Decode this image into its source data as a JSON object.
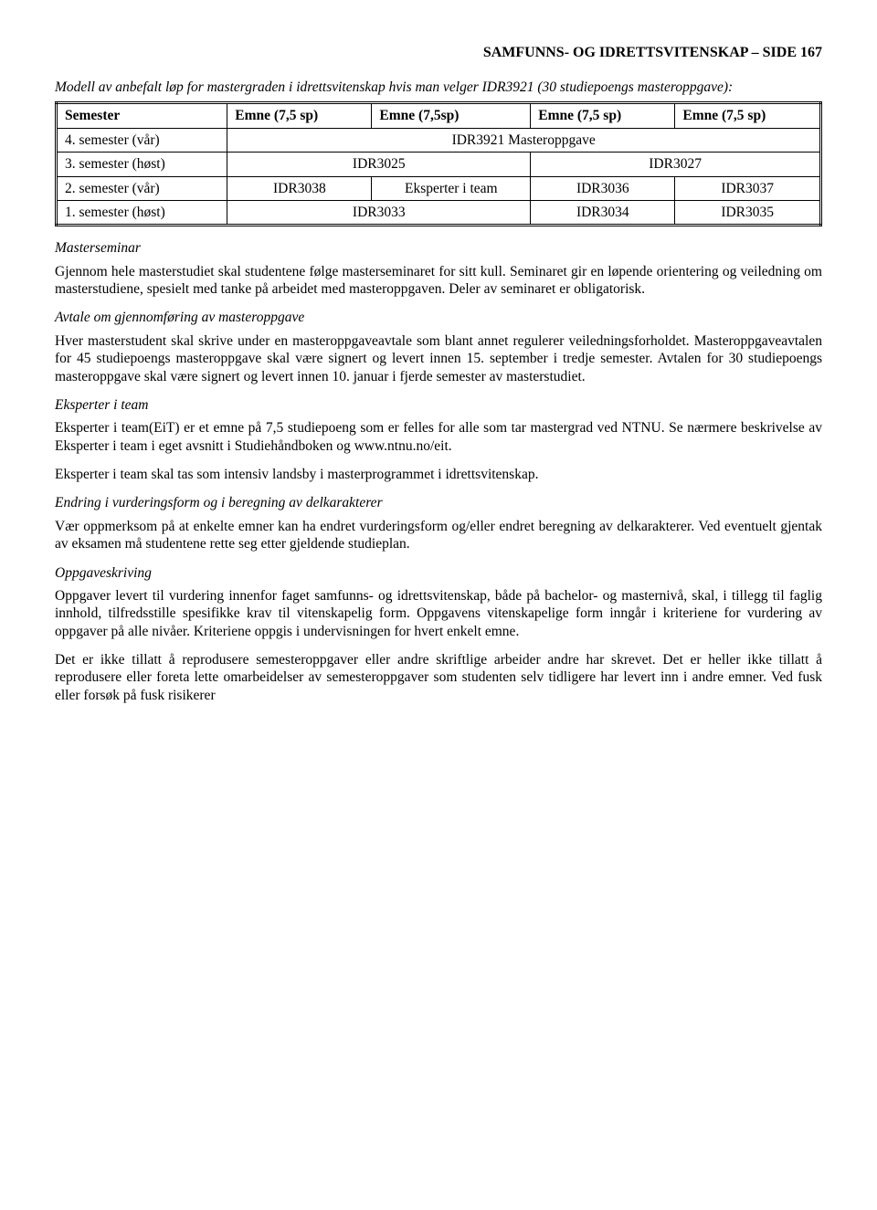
{
  "header": "SAMFUNNS- OG IDRETTSVITENSKAP – SIDE 167",
  "intro": "Modell av anbefalt løp for mastergraden i idrettsvitenskap hvis man velger IDR3921 (30 studiepoengs masteroppgave):",
  "table": {
    "head": [
      "Semester",
      "Emne (7,5 sp)",
      "Emne (7,5sp)",
      "Emne (7,5 sp)",
      "Emne (7,5 sp)"
    ],
    "r4_label": "4. semester (vår)",
    "r4_val": "IDR3921 Masteroppgave",
    "r3_label": "3. semester (høst)",
    "r3_c1": "IDR3025",
    "r3_c2": "IDR3027",
    "r2_label": "2. semester (vår)",
    "r2_c1": "IDR3038",
    "r2_c2": "Eksperter i team",
    "r2_c3": "IDR3036",
    "r2_c4": "IDR3037",
    "r1_label": "1. semester (høst)",
    "r1_c1": "IDR3033",
    "r1_c2": "IDR3034",
    "r1_c3": "IDR3035"
  },
  "sec1_title": "Masterseminar",
  "sec1_p": "Gjennom hele masterstudiet skal studentene følge masterseminaret for sitt kull. Seminaret gir en løpende orientering og veiledning om masterstudiene, spesielt med tanke på arbeidet med masteroppgaven. Deler av seminaret er obligatorisk.",
  "sec2_title": "Avtale om gjennomføring av masteroppgave",
  "sec2_p": "Hver masterstudent skal skrive under en masteroppgaveavtale som blant annet regulerer veiledningsforholdet. Masteroppgaveavtalen for 45 studiepoengs masteroppgave skal være signert og levert innen 15. september i tredje semester. Avtalen for 30 studiepoengs masteroppgave skal være signert og levert innen 10. januar i fjerde semester av masterstudiet.",
  "sec3_title": "Eksperter i team",
  "sec3_p1": "Eksperter i team(EiT) er et emne på 7,5 studiepoeng som er felles for alle som tar mastergrad ved NTNU. Se nærmere beskrivelse av Eksperter i team i eget avsnitt i Studiehåndboken og www.ntnu.no/eit.",
  "sec3_p2": "Eksperter i team skal tas som intensiv landsby i masterprogrammet i idrettsvitenskap.",
  "sec4_title": "Endring i vurderingsform og i beregning av delkarakterer",
  "sec4_p": "Vær oppmerksom på at enkelte emner kan ha endret vurderingsform og/eller endret beregning av delkarakterer. Ved eventuelt gjentak av eksamen må studentene rette seg etter gjeldende studieplan.",
  "sec5_title": "Oppgaveskriving",
  "sec5_p1": "Oppgaver levert til vurdering innenfor faget samfunns- og idrettsvitenskap, både på bachelor- og masternivå, skal, i tillegg til faglig innhold, tilfredsstille spesifikke krav til vitenskapelig form. Oppgavens vitenskapelige form inngår i kriteriene for vurdering av oppgaver på alle nivåer. Kriteriene oppgis i undervisningen for hvert enkelt emne.",
  "sec5_p2": "Det er ikke tillatt å reprodusere semesteroppgaver eller andre skriftlige arbeider andre har skrevet. Det er heller ikke tillatt å reprodusere eller foreta lette omarbeidelser av semesteroppgaver som studenten selv tidligere har levert inn i andre emner. Ved fusk eller forsøk på fusk risikerer"
}
